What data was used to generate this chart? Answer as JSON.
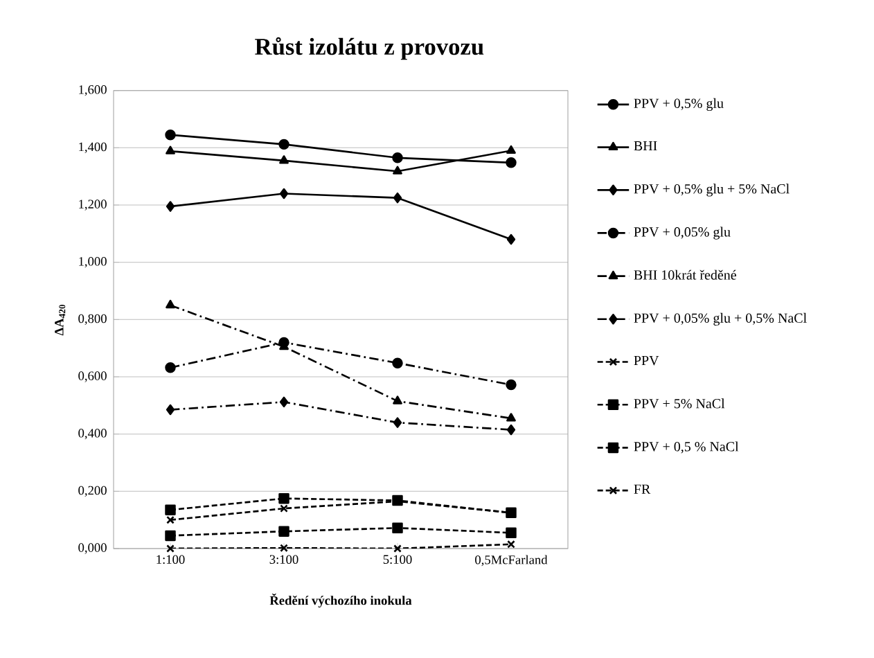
{
  "chart_data": {
    "type": "line",
    "title": "Růst izolátu z provozu",
    "xlabel": "Ředění výchozího inokula",
    "ylabel": "ΔA$_{420}$",
    "categories": [
      "1:100",
      "3:100",
      "5:100",
      "0,5McFarland"
    ],
    "ylim": [
      0,
      1.6
    ],
    "yticks": [
      {
        "value": 0,
        "label": "0,000"
      },
      {
        "value": 0.2,
        "label": "0,200"
      },
      {
        "value": 0.4,
        "label": "0,400"
      },
      {
        "value": 0.6,
        "label": "0,600"
      },
      {
        "value": 0.8,
        "label": "0,800"
      },
      {
        "value": 1.0,
        "label": "1,000"
      },
      {
        "value": 1.2,
        "label": "1,200"
      },
      {
        "value": 1.4,
        "label": "1,400"
      },
      {
        "value": 1.6,
        "label": "1,600"
      }
    ],
    "grid": "y",
    "legend": "right",
    "series": [
      {
        "name": "PPV + 0,5% glu",
        "color": "#000000",
        "marker": "circle",
        "line_style": "solid",
        "values": [
          1.445,
          1.412,
          1.365,
          1.348
        ]
      },
      {
        "name": "BHI",
        "color": "#000000",
        "marker": "triangle",
        "line_style": "solid",
        "values": [
          1.388,
          1.355,
          1.318,
          1.39
        ]
      },
      {
        "name": "PPV + 0,5% glu + 5% NaCl",
        "color": "#000000",
        "marker": "diamond",
        "line_style": "solid",
        "values": [
          1.195,
          1.24,
          1.225,
          1.08
        ]
      },
      {
        "name": "PPV + 0,05% glu",
        "color": "#000000",
        "marker": "circle",
        "line_style": "dashdot",
        "values": [
          0.632,
          0.72,
          0.648,
          0.572
        ]
      },
      {
        "name": "BHI 10krát ředěné",
        "color": "#000000",
        "marker": "triangle",
        "line_style": "dashdot",
        "values": [
          0.85,
          0.705,
          0.515,
          0.455
        ]
      },
      {
        "name": "PPV +  0,05% glu + 0,5% NaCl",
        "color": "#000000",
        "marker": "diamond",
        "line_style": "dashdot",
        "values": [
          0.485,
          0.512,
          0.44,
          0.415
        ]
      },
      {
        "name": "PPV",
        "color": "#000000",
        "marker": "cross",
        "line_style": "dashed",
        "values": [
          0.1,
          0.14,
          0.165,
          0.125
        ]
      },
      {
        "name": "PPV + 5% NaCl",
        "color": "#000000",
        "marker": "square",
        "line_style": "dashed",
        "values": [
          0.135,
          0.175,
          0.168,
          0.125
        ]
      },
      {
        "name": "PPV + 0,5 % NaCl",
        "color": "#000000",
        "marker": "square",
        "line_style": "dashed",
        "values": [
          0.045,
          0.06,
          0.072,
          0.055
        ]
      },
      {
        "name": "FR",
        "color": "#000000",
        "marker": "cross",
        "line_style": "dashed",
        "values": [
          0.0,
          0.002,
          0.0,
          0.015
        ]
      }
    ]
  }
}
